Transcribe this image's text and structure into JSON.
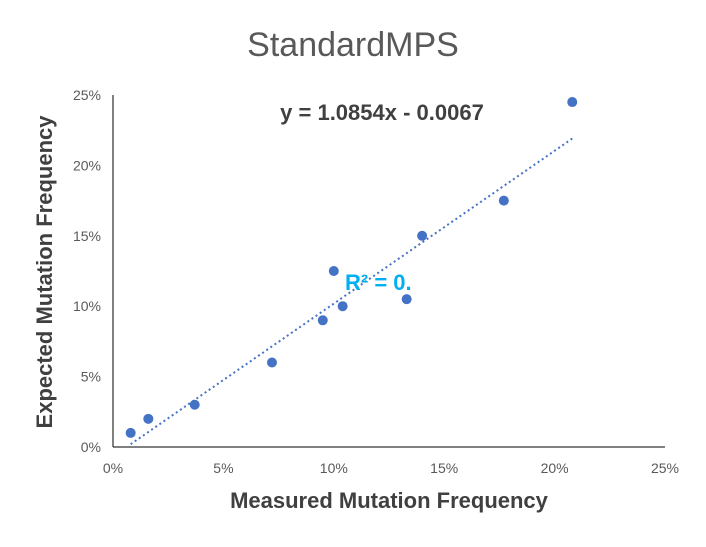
{
  "chart_data": {
    "type": "scatter",
    "title": "StandardMPS",
    "xlabel": "Measured Mutation Frequency",
    "ylabel": "Expected Mutation Frequency",
    "xlim": [
      0,
      0.25
    ],
    "ylim": [
      0,
      0.25
    ],
    "x_ticks": [
      "0%",
      "5%",
      "10%",
      "15%",
      "20%",
      "25%"
    ],
    "y_ticks": [
      "0%",
      "5%",
      "10%",
      "15%",
      "20%",
      "25%"
    ],
    "grid": false,
    "legend": "none",
    "series": [
      {
        "x": [
          0.008,
          0.016,
          0.037,
          0.072,
          0.095,
          0.1,
          0.104,
          0.133,
          0.14,
          0.177,
          0.208
        ],
        "y": [
          0.01,
          0.02,
          0.03,
          0.06,
          0.09,
          0.125,
          0.1,
          0.105,
          0.15,
          0.175,
          0.245
        ],
        "color": "#4472c4"
      }
    ],
    "trendline": {
      "type": "linear",
      "slope": 1.0854,
      "intercept": -0.0067,
      "x_range": [
        0.008,
        0.208
      ],
      "color": "#4472c4",
      "style": "dotted"
    },
    "annotations": {
      "equation": "y = 1.0854x - 0.0067",
      "r_squared": "R² = 0."
    }
  }
}
